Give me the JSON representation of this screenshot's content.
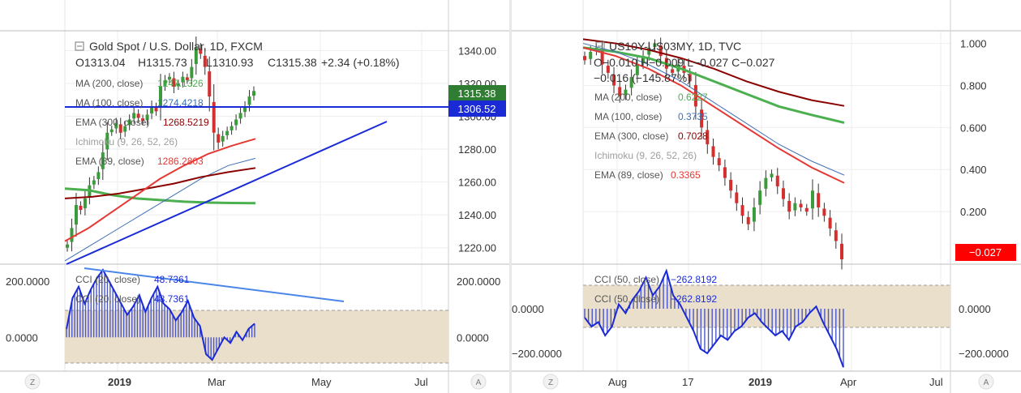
{
  "left": {
    "symbol_line": "Gold Spot / U.S. Dollar, 1D, FXCM",
    "ohlc": {
      "o": "O1313.04",
      "h": "H1315.73",
      "l": "L1310.93",
      "c": "C1315.38",
      "chg": "+2.34 (+0.18%)"
    },
    "indicators": [
      {
        "label": "MA (200, close)",
        "value": "1247.1326",
        "color": "#4caf50"
      },
      {
        "label": "MA (100, close)",
        "value": "1274.4218",
        "color": "#3f6fb5"
      },
      {
        "label": "EMA (300, close)",
        "value": "1268.5219",
        "color": "#8b0000"
      },
      {
        "label": "Ichimoku (9, 26, 52, 26)",
        "value": "",
        "color": "#9e9e9e"
      },
      {
        "label": "EMA (89, close)",
        "value": "1286.2803",
        "color": "#e53935"
      }
    ],
    "price_ticks": [
      "1340.00",
      "1320.00",
      "1300.00",
      "1280.00",
      "1260.00",
      "1240.00",
      "1220.00"
    ],
    "price_badge": "1315.38",
    "line_badge": "1306.52",
    "cci_label": "CCI (20, close)",
    "cci_value": "48.7361",
    "cci_ticks": [
      "200.0000",
      "0.0000"
    ],
    "time_ticks": [
      "2019",
      "Mar",
      "May",
      "Jul"
    ],
    "zoom_label": "Z",
    "auto_label": "A"
  },
  "right": {
    "symbol_line": "US10Y-US03MY, 1D, TVC",
    "ohlc_line1": "O−0.010  H−0.009  L−0.027  C−0.027",
    "ohlc_line2": "−0.016 (−145.87%)",
    "indicators": [
      {
        "label": "MA (200, close)",
        "value": "0.6227",
        "color": "#4caf50"
      },
      {
        "label": "MA (100, close)",
        "value": "0.3735",
        "color": "#3f6fb5"
      },
      {
        "label": "EMA (300, close)",
        "value": "0.7028",
        "color": "#8b0000"
      },
      {
        "label": "Ichimoku (9, 26, 52, 26)",
        "value": "",
        "color": "#9e9e9e"
      },
      {
        "label": "EMA (89, close)",
        "value": "0.3365",
        "color": "#e53935"
      }
    ],
    "price_ticks": [
      "1.000",
      "0.800",
      "0.600",
      "0.400",
      "0.200"
    ],
    "price_badge": "−0.027",
    "cci_label": "CCI (50, close)",
    "cci_value": "−262.8192",
    "cci_ticks": [
      "0.0000",
      "−200.0000"
    ],
    "time_ticks": [
      "Aug",
      "17",
      "2019",
      "Apr",
      "Jul"
    ],
    "zoom_label": "Z",
    "auto_label": "A"
  },
  "chart_data": [
    {
      "type": "candlestick",
      "title": "Gold Spot / U.S. Dollar, 1D, FXCM",
      "ylim": [
        1210,
        1352
      ],
      "series": [
        {
          "name": "Close",
          "values": [
            1222,
            1232,
            1246,
            1243,
            1250,
            1258,
            1261,
            1266,
            1278,
            1290,
            1292,
            1296,
            1290,
            1294,
            1298,
            1302,
            1299,
            1297,
            1301,
            1306,
            1303,
            1318,
            1322,
            1324,
            1318,
            1320,
            1324,
            1322,
            1330,
            1342,
            1338,
            1330,
            1312,
            1290,
            1284,
            1288,
            1291,
            1294,
            1298,
            1302,
            1306,
            1312,
            1315.38
          ]
        },
        {
          "name": "MA (200, close)",
          "values": [
            1256,
            1255,
            1252,
            1250,
            1249,
            1248,
            1247.5,
            1247.2,
            1247.1326
          ]
        },
        {
          "name": "MA (100, close)",
          "values": [
            1212,
            1222,
            1232,
            1242,
            1252,
            1262,
            1270,
            1274.4218
          ]
        },
        {
          "name": "EMA (300, close)",
          "values": [
            1250,
            1251,
            1253,
            1256,
            1259,
            1263,
            1266,
            1268.5219
          ]
        },
        {
          "name": "EMA (89, close)",
          "values": [
            1224,
            1232,
            1242,
            1252,
            1262,
            1270,
            1277,
            1282,
            1286.2803
          ]
        }
      ],
      "annotations": [
        "horizontal line 1306.52",
        "rising trendline"
      ]
    },
    {
      "type": "line",
      "title": "CCI (20, close)",
      "ylim": [
        -120,
        260
      ],
      "series": [
        {
          "name": "CCI (20, close)",
          "values": [
            30,
            140,
            180,
            120,
            170,
            210,
            240,
            200,
            160,
            120,
            80,
            110,
            150,
            90,
            140,
            180,
            120,
            100,
            60,
            90,
            130,
            70,
            40,
            -60,
            -80,
            -40,
            0,
            -20,
            20,
            -10,
            30,
            48.7361
          ]
        }
      ]
    },
    {
      "type": "candlestick",
      "title": "US10Y-US03MY, 1D, TVC",
      "ylim": [
        -0.05,
        1.06
      ],
      "series": [
        {
          "name": "Close",
          "values": [
            0.92,
            0.96,
            0.98,
            0.9,
            0.86,
            0.8,
            0.75,
            0.78,
            0.84,
            0.9,
            0.94,
            0.98,
            1.0,
            0.94,
            0.88,
            0.86,
            0.9,
            0.86,
            0.82,
            0.7,
            0.6,
            0.52,
            0.46,
            0.42,
            0.36,
            0.3,
            0.24,
            0.18,
            0.14,
            0.22,
            0.3,
            0.36,
            0.38,
            0.32,
            0.26,
            0.2,
            0.24,
            0.22,
            0.2,
            0.3,
            0.22,
            0.18,
            0.12,
            0.06,
            -0.027
          ]
        },
        {
          "name": "MA (200, close)",
          "values": [
            0.98,
            0.96,
            0.93,
            0.88,
            0.82,
            0.76,
            0.7,
            0.66,
            0.6227
          ]
        },
        {
          "name": "MA (100, close)",
          "values": [
            1.0,
            0.96,
            0.9,
            0.82,
            0.72,
            0.62,
            0.52,
            0.44,
            0.3735
          ]
        },
        {
          "name": "EMA (300, close)",
          "values": [
            1.02,
            1.0,
            0.97,
            0.93,
            0.88,
            0.82,
            0.77,
            0.73,
            0.7028
          ]
        },
        {
          "name": "EMA (89, close)",
          "values": [
            0.98,
            0.94,
            0.88,
            0.8,
            0.7,
            0.6,
            0.5,
            0.41,
            0.3365
          ]
        }
      ]
    },
    {
      "type": "line",
      "title": "CCI (50, close)",
      "ylim": [
        -280,
        200
      ],
      "series": [
        {
          "name": "CCI (50, close)",
          "values": [
            -40,
            -80,
            -60,
            -120,
            -80,
            20,
            -20,
            40,
            80,
            140,
            60,
            100,
            170,
            60,
            20,
            -40,
            -100,
            -180,
            -200,
            -160,
            -120,
            -140,
            -100,
            -80,
            -40,
            -20,
            -60,
            -90,
            -120,
            -100,
            -140,
            -80,
            -60,
            -20,
            10,
            -60,
            -120,
            -180,
            -262.8192
          ]
        }
      ]
    }
  ]
}
